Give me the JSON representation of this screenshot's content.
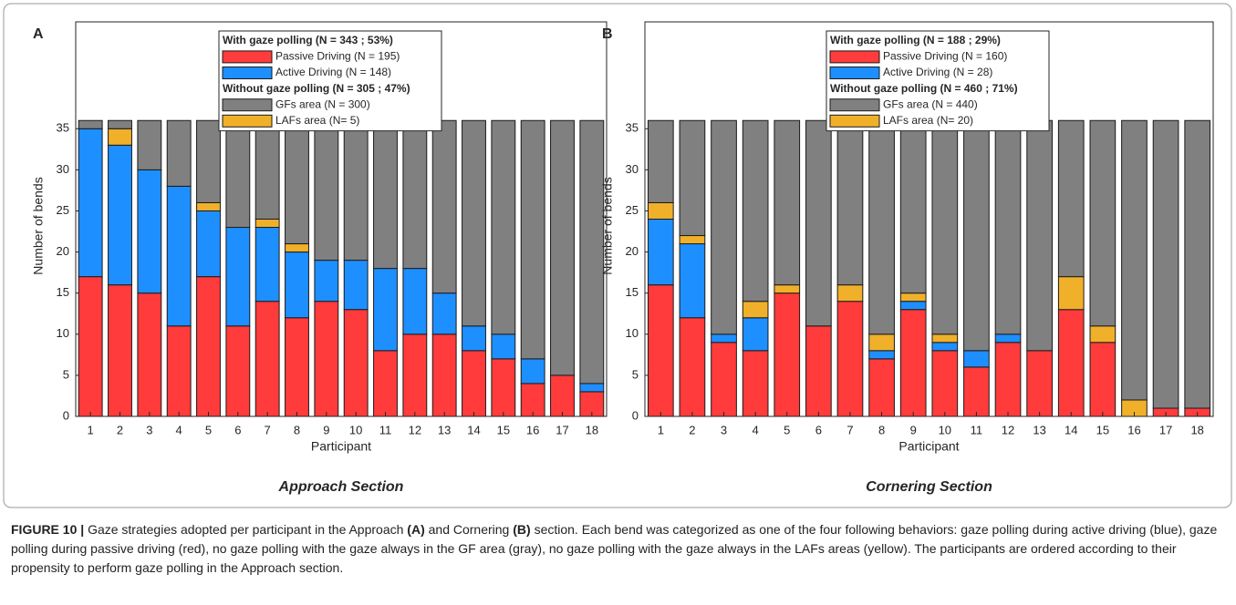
{
  "chart_data": [
    {
      "type": "bar",
      "stacked": true,
      "panel_label": "A",
      "section_title": "Approach Section",
      "ylabel": "Number of bends",
      "xlabel": "Participant",
      "categories": [
        "1",
        "2",
        "3",
        "4",
        "5",
        "6",
        "7",
        "8",
        "9",
        "10",
        "11",
        "12",
        "13",
        "14",
        "15",
        "16",
        "17",
        "18"
      ],
      "legend_headers": [
        "With gaze polling (N = 343 ; 53%)",
        "Without gaze polling (N = 305 ; 47%)"
      ],
      "series": [
        {
          "name": "Passive Driving (N = 195)",
          "color": "#ff3b3b",
          "values": [
            17,
            16,
            15,
            11,
            17,
            11,
            14,
            12,
            14,
            13,
            8,
            10,
            10,
            8,
            7,
            4,
            5,
            3
          ]
        },
        {
          "name": "Active Driving (N = 148)",
          "color": "#1e8fff",
          "values": [
            18,
            17,
            15,
            17,
            8,
            12,
            9,
            8,
            5,
            6,
            10,
            8,
            5,
            3,
            3,
            3,
            0,
            1
          ]
        },
        {
          "name": "GFs area (N = 300)",
          "color": "#808080",
          "values": [
            1,
            1,
            6,
            8,
            10,
            13,
            12,
            15,
            17,
            17,
            18,
            18,
            21,
            25,
            26,
            29,
            31,
            32
          ]
        },
        {
          "name": "LAFs area (N= 5)",
          "color": "#f0b02a",
          "values": [
            0,
            2,
            0,
            0,
            1,
            0,
            1,
            1,
            0,
            0,
            0,
            0,
            0,
            0,
            0,
            0,
            0,
            0
          ]
        }
      ],
      "ylim": [
        0,
        48
      ],
      "yticks": [
        0,
        5,
        10,
        15,
        20,
        25,
        30,
        35
      ]
    },
    {
      "type": "bar",
      "stacked": true,
      "panel_label": "B",
      "section_title": "Cornering Section",
      "ylabel": "Number of bends",
      "xlabel": "Participant",
      "categories": [
        "1",
        "2",
        "3",
        "4",
        "5",
        "6",
        "7",
        "8",
        "9",
        "10",
        "11",
        "12",
        "13",
        "14",
        "15",
        "16",
        "17",
        "18"
      ],
      "legend_headers": [
        "With gaze polling (N = 188 ; 29%)",
        "Without gaze polling (N = 460 ; 71%)"
      ],
      "series": [
        {
          "name": "Passive Driving (N = 160)",
          "color": "#ff3b3b",
          "values": [
            16,
            12,
            9,
            8,
            15,
            11,
            14,
            7,
            13,
            8,
            6,
            9,
            8,
            13,
            9,
            0,
            1,
            1
          ]
        },
        {
          "name": "Active Driving (N = 28)",
          "color": "#1e8fff",
          "values": [
            8,
            9,
            1,
            4,
            0,
            0,
            0,
            1,
            1,
            1,
            2,
            1,
            0,
            0,
            0,
            0,
            0,
            0
          ]
        },
        {
          "name": "GFs area (N = 440)",
          "color": "#808080",
          "values": [
            10,
            14,
            26,
            22,
            20,
            25,
            20,
            26,
            21,
            26,
            28,
            26,
            28,
            19,
            25,
            34,
            35,
            35
          ]
        },
        {
          "name": "LAFs area (N= 20)",
          "color": "#f0b02a",
          "values": [
            2,
            1,
            0,
            2,
            1,
            0,
            2,
            2,
            1,
            1,
            0,
            0,
            0,
            4,
            2,
            2,
            0,
            0
          ]
        }
      ],
      "ylim": [
        0,
        48
      ],
      "yticks": [
        0,
        5,
        10,
        15,
        20,
        25,
        30,
        35
      ]
    }
  ],
  "caption": {
    "label": "FIGURE 10 |",
    "parts": [
      "Gaze strategies adopted per participant in the Approach ",
      "(A)",
      " and Cornering ",
      "(B)",
      " section. Each bend was categorized as one of the four following behaviors: gaze polling during active driving (blue), gaze polling during passive driving (red), no gaze polling with the gaze always in the GF area (gray), no gaze polling with the gaze always in the LAFs areas (yellow). The participants are ordered according to their propensity to perform gaze polling in the Approach section."
    ]
  }
}
